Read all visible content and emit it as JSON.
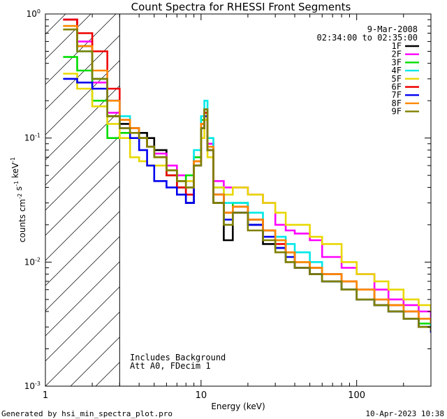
{
  "chart_data": {
    "type": "line",
    "title": "Count Spectra for RHESSI Front Segments",
    "xlabel": "Energy (keV)",
    "ylabel": "counts cm^-2 s^-1 keV^-1",
    "xscale": "log",
    "yscale": "log",
    "xlim": [
      1,
      300
    ],
    "ylim": [
      0.001,
      1
    ],
    "x_ticks": [
      1,
      10,
      100
    ],
    "x_tick_labels": [
      "1",
      "10",
      "100"
    ],
    "y_ticks": [
      0.001,
      0.01,
      0.1,
      1
    ],
    "y_tick_labels": [
      "10^-3",
      "10^-2",
      "10^-1",
      "10^0"
    ],
    "date_label": "9-Mar-2008",
    "time_range_label": "02:34:00 to 02:35:00",
    "notes": [
      "Includes Background",
      "Att A0, FDecim 1"
    ],
    "shaded_region_max_keV": 3,
    "footer_left": "Generated by hsi_min_spectra_plot.pro",
    "footer_right": "10-Apr-2023 10:38",
    "series": [
      {
        "name": "1F",
        "color": "#000000",
        "points": [
          [
            1.3,
            0.9
          ],
          [
            1.6,
            0.55
          ],
          [
            2.0,
            0.3
          ],
          [
            2.5,
            0.15
          ],
          [
            3.0,
            0.13
          ],
          [
            3.5,
            0.12
          ],
          [
            4.0,
            0.11
          ],
          [
            4.5,
            0.1
          ],
          [
            5.0,
            0.08
          ],
          [
            6.0,
            0.055
          ],
          [
            7.0,
            0.04
          ],
          [
            8.0,
            0.03
          ],
          [
            9.0,
            0.06
          ],
          [
            10.0,
            0.12
          ],
          [
            10.5,
            0.17
          ],
          [
            11.0,
            0.09
          ],
          [
            12.0,
            0.03
          ],
          [
            14.0,
            0.015
          ],
          [
            16.0,
            0.025
          ],
          [
            20.0,
            0.02
          ],
          [
            25.0,
            0.014
          ],
          [
            30.0,
            0.013
          ],
          [
            35.0,
            0.01
          ],
          [
            40.0,
            0.009
          ],
          [
            50.0,
            0.008
          ],
          [
            60.0,
            0.007
          ],
          [
            80.0,
            0.006
          ],
          [
            100.0,
            0.005
          ],
          [
            130.0,
            0.0045
          ],
          [
            160.0,
            0.004
          ],
          [
            200.0,
            0.0035
          ],
          [
            250.0,
            0.003
          ],
          [
            300.0,
            0.0028
          ]
        ]
      },
      {
        "name": "2F",
        "color": "#ff00ff",
        "points": [
          [
            1.3,
            0.9
          ],
          [
            1.6,
            0.6
          ],
          [
            2.0,
            0.28
          ],
          [
            2.5,
            0.16
          ],
          [
            3.0,
            0.14
          ],
          [
            3.5,
            0.12
          ],
          [
            4.0,
            0.1
          ],
          [
            4.5,
            0.085
          ],
          [
            5.0,
            0.075
          ],
          [
            6.0,
            0.06
          ],
          [
            7.0,
            0.05
          ],
          [
            8.0,
            0.045
          ],
          [
            9.0,
            0.07
          ],
          [
            10.0,
            0.13
          ],
          [
            10.5,
            0.16
          ],
          [
            11.0,
            0.09
          ],
          [
            12.0,
            0.045
          ],
          [
            14.0,
            0.04
          ],
          [
            16.0,
            0.04
          ],
          [
            20.0,
            0.035
          ],
          [
            25.0,
            0.03
          ],
          [
            30.0,
            0.02
          ],
          [
            35.0,
            0.018
          ],
          [
            40.0,
            0.017
          ],
          [
            50.0,
            0.015
          ],
          [
            60.0,
            0.011
          ],
          [
            80.0,
            0.009
          ],
          [
            100.0,
            0.008
          ],
          [
            130.0,
            0.006
          ],
          [
            160.0,
            0.005
          ],
          [
            200.0,
            0.0045
          ],
          [
            250.0,
            0.004
          ],
          [
            300.0,
            0.0035
          ]
        ]
      },
      {
        "name": "3F",
        "color": "#00dd00",
        "points": [
          [
            1.3,
            0.45
          ],
          [
            1.6,
            0.35
          ],
          [
            2.0,
            0.2
          ],
          [
            2.5,
            0.1
          ],
          [
            3.0,
            0.11
          ],
          [
            3.5,
            0.12
          ],
          [
            4.0,
            0.1
          ],
          [
            4.5,
            0.085
          ],
          [
            5.0,
            0.07
          ],
          [
            6.0,
            0.05
          ],
          [
            7.0,
            0.045
          ],
          [
            8.0,
            0.05
          ],
          [
            9.0,
            0.07
          ],
          [
            10.0,
            0.14
          ],
          [
            10.5,
            0.16
          ],
          [
            11.0,
            0.08
          ],
          [
            12.0,
            0.035
          ],
          [
            14.0,
            0.025
          ],
          [
            16.0,
            0.03
          ],
          [
            20.0,
            0.022
          ],
          [
            25.0,
            0.018
          ],
          [
            30.0,
            0.015
          ],
          [
            35.0,
            0.012
          ],
          [
            40.0,
            0.01
          ],
          [
            50.0,
            0.009
          ],
          [
            60.0,
            0.007
          ],
          [
            80.0,
            0.006
          ],
          [
            100.0,
            0.005
          ],
          [
            130.0,
            0.0045
          ],
          [
            160.0,
            0.004
          ],
          [
            200.0,
            0.0035
          ],
          [
            250.0,
            0.0032
          ],
          [
            300.0,
            0.003
          ]
        ]
      },
      {
        "name": "4F",
        "color": "#00e8e8",
        "points": [
          [
            1.3,
            0.8
          ],
          [
            1.6,
            0.5
          ],
          [
            2.0,
            0.3
          ],
          [
            2.5,
            0.2
          ],
          [
            3.0,
            0.15
          ],
          [
            3.5,
            0.12
          ],
          [
            4.0,
            0.1
          ],
          [
            4.5,
            0.085
          ],
          [
            5.0,
            0.07
          ],
          [
            6.0,
            0.055
          ],
          [
            7.0,
            0.045
          ],
          [
            8.0,
            0.04
          ],
          [
            9.0,
            0.08
          ],
          [
            10.0,
            0.15
          ],
          [
            10.5,
            0.2
          ],
          [
            11.0,
            0.1
          ],
          [
            12.0,
            0.04
          ],
          [
            14.0,
            0.03
          ],
          [
            16.0,
            0.03
          ],
          [
            20.0,
            0.025
          ],
          [
            25.0,
            0.018
          ],
          [
            30.0,
            0.016
          ],
          [
            35.0,
            0.014
          ],
          [
            40.0,
            0.012
          ],
          [
            50.0,
            0.01
          ],
          [
            60.0,
            0.008
          ],
          [
            80.0,
            0.007
          ],
          [
            100.0,
            0.006
          ],
          [
            130.0,
            0.005
          ],
          [
            160.0,
            0.0045
          ],
          [
            200.0,
            0.004
          ],
          [
            250.0,
            0.0035
          ],
          [
            300.0,
            0.003
          ]
        ]
      },
      {
        "name": "5F",
        "color": "#e8d800",
        "points": [
          [
            1.3,
            0.33
          ],
          [
            1.6,
            0.25
          ],
          [
            2.0,
            0.18
          ],
          [
            2.5,
            0.13
          ],
          [
            3.0,
            0.1
          ],
          [
            3.5,
            0.07
          ],
          [
            4.0,
            0.065
          ],
          [
            4.5,
            0.06
          ],
          [
            5.0,
            0.06
          ],
          [
            6.0,
            0.055
          ],
          [
            7.0,
            0.045
          ],
          [
            8.0,
            0.045
          ],
          [
            9.0,
            0.06
          ],
          [
            10.0,
            0.1
          ],
          [
            10.5,
            0.14
          ],
          [
            11.0,
            0.07
          ],
          [
            12.0,
            0.04
          ],
          [
            14.0,
            0.035
          ],
          [
            16.0,
            0.04
          ],
          [
            20.0,
            0.035
          ],
          [
            25.0,
            0.03
          ],
          [
            30.0,
            0.025
          ],
          [
            35.0,
            0.02
          ],
          [
            40.0,
            0.02
          ],
          [
            50.0,
            0.016
          ],
          [
            60.0,
            0.014
          ],
          [
            80.0,
            0.01
          ],
          [
            100.0,
            0.008
          ],
          [
            130.0,
            0.007
          ],
          [
            160.0,
            0.006
          ],
          [
            200.0,
            0.005
          ],
          [
            250.0,
            0.0045
          ],
          [
            300.0,
            0.004
          ]
        ]
      },
      {
        "name": "6F",
        "color": "#ee0000",
        "points": [
          [
            1.3,
            0.9
          ],
          [
            1.6,
            0.7
          ],
          [
            2.0,
            0.5
          ],
          [
            2.5,
            0.25
          ],
          [
            3.0,
            0.14
          ],
          [
            3.5,
            0.12
          ],
          [
            4.0,
            0.1
          ],
          [
            4.5,
            0.085
          ],
          [
            5.0,
            0.07
          ],
          [
            6.0,
            0.05
          ],
          [
            7.0,
            0.04
          ],
          [
            8.0,
            0.035
          ],
          [
            9.0,
            0.065
          ],
          [
            10.0,
            0.13
          ],
          [
            10.5,
            0.16
          ],
          [
            11.0,
            0.08
          ],
          [
            12.0,
            0.035
          ],
          [
            14.0,
            0.025
          ],
          [
            16.0,
            0.028
          ],
          [
            20.0,
            0.022
          ],
          [
            25.0,
            0.018
          ],
          [
            30.0,
            0.014
          ],
          [
            35.0,
            0.012
          ],
          [
            40.0,
            0.01
          ],
          [
            50.0,
            0.009
          ],
          [
            60.0,
            0.008
          ],
          [
            80.0,
            0.007
          ],
          [
            100.0,
            0.006
          ],
          [
            130.0,
            0.005
          ],
          [
            160.0,
            0.0045
          ],
          [
            200.0,
            0.004
          ],
          [
            250.0,
            0.0035
          ],
          [
            300.0,
            0.0032
          ]
        ]
      },
      {
        "name": "7F",
        "color": "#0000ee",
        "points": [
          [
            1.3,
            0.3
          ],
          [
            1.6,
            0.28
          ],
          [
            2.0,
            0.25
          ],
          [
            2.5,
            0.2
          ],
          [
            3.0,
            0.12
          ],
          [
            3.5,
            0.1
          ],
          [
            4.0,
            0.08
          ],
          [
            4.5,
            0.06
          ],
          [
            5.0,
            0.045
          ],
          [
            6.0,
            0.04
          ],
          [
            7.0,
            0.035
          ],
          [
            8.0,
            0.03
          ],
          [
            9.0,
            0.06
          ],
          [
            10.0,
            0.12
          ],
          [
            10.5,
            0.15
          ],
          [
            11.0,
            0.08
          ],
          [
            12.0,
            0.035
          ],
          [
            14.0,
            0.022
          ],
          [
            16.0,
            0.025
          ],
          [
            20.0,
            0.02
          ],
          [
            25.0,
            0.016
          ],
          [
            30.0,
            0.013
          ],
          [
            35.0,
            0.011
          ],
          [
            40.0,
            0.009
          ],
          [
            50.0,
            0.008
          ],
          [
            60.0,
            0.007
          ],
          [
            80.0,
            0.006
          ],
          [
            100.0,
            0.005
          ],
          [
            130.0,
            0.0045
          ],
          [
            160.0,
            0.004
          ],
          [
            200.0,
            0.0035
          ],
          [
            250.0,
            0.003
          ],
          [
            300.0,
            0.0027
          ]
        ]
      },
      {
        "name": "8F",
        "color": "#ff8800",
        "points": [
          [
            1.3,
            0.8
          ],
          [
            1.6,
            0.55
          ],
          [
            2.0,
            0.35
          ],
          [
            2.5,
            0.2
          ],
          [
            3.0,
            0.14
          ],
          [
            3.5,
            0.12
          ],
          [
            4.0,
            0.1
          ],
          [
            4.5,
            0.085
          ],
          [
            5.0,
            0.07
          ],
          [
            6.0,
            0.055
          ],
          [
            7.0,
            0.045
          ],
          [
            8.0,
            0.04
          ],
          [
            9.0,
            0.065
          ],
          [
            10.0,
            0.13
          ],
          [
            10.5,
            0.17
          ],
          [
            11.0,
            0.085
          ],
          [
            12.0,
            0.035
          ],
          [
            14.0,
            0.025
          ],
          [
            16.0,
            0.028
          ],
          [
            20.0,
            0.022
          ],
          [
            25.0,
            0.018
          ],
          [
            30.0,
            0.015
          ],
          [
            35.0,
            0.012
          ],
          [
            40.0,
            0.01
          ],
          [
            50.0,
            0.009
          ],
          [
            60.0,
            0.008
          ],
          [
            80.0,
            0.007
          ],
          [
            100.0,
            0.006
          ],
          [
            130.0,
            0.005
          ],
          [
            160.0,
            0.0045
          ],
          [
            200.0,
            0.004
          ],
          [
            250.0,
            0.0035
          ],
          [
            300.0,
            0.0032
          ]
        ]
      },
      {
        "name": "9F",
        "color": "#808000",
        "points": [
          [
            1.3,
            0.75
          ],
          [
            1.6,
            0.5
          ],
          [
            2.0,
            0.3
          ],
          [
            2.5,
            0.15
          ],
          [
            3.0,
            0.12
          ],
          [
            3.5,
            0.11
          ],
          [
            4.0,
            0.1
          ],
          [
            4.5,
            0.085
          ],
          [
            5.0,
            0.07
          ],
          [
            6.0,
            0.055
          ],
          [
            7.0,
            0.045
          ],
          [
            8.0,
            0.04
          ],
          [
            9.0,
            0.06
          ],
          [
            10.0,
            0.12
          ],
          [
            10.5,
            0.17
          ],
          [
            11.0,
            0.08
          ],
          [
            12.0,
            0.03
          ],
          [
            14.0,
            0.02
          ],
          [
            16.0,
            0.025
          ],
          [
            20.0,
            0.018
          ],
          [
            25.0,
            0.015
          ],
          [
            30.0,
            0.012
          ],
          [
            35.0,
            0.01
          ],
          [
            40.0,
            0.009
          ],
          [
            50.0,
            0.008
          ],
          [
            60.0,
            0.007
          ],
          [
            80.0,
            0.006
          ],
          [
            100.0,
            0.005
          ],
          [
            130.0,
            0.0045
          ],
          [
            160.0,
            0.004
          ],
          [
            200.0,
            0.0035
          ],
          [
            250.0,
            0.003
          ],
          [
            300.0,
            0.0028
          ]
        ]
      }
    ]
  }
}
